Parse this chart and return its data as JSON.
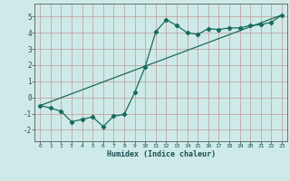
{
  "xlabel": "Humidex (Indice chaleur)",
  "background_color": "#ceeae8",
  "grid_color": "#c09898",
  "line_color": "#1a6b5a",
  "xlim": [
    -0.5,
    23.5
  ],
  "ylim": [
    -2.7,
    5.8
  ],
  "xticks": [
    0,
    1,
    2,
    3,
    4,
    5,
    6,
    7,
    8,
    9,
    10,
    11,
    12,
    13,
    14,
    15,
    16,
    17,
    18,
    19,
    20,
    21,
    22,
    23
  ],
  "yticks": [
    -2,
    -1,
    0,
    1,
    2,
    3,
    4,
    5
  ],
  "curve1_x": [
    0,
    1,
    2,
    3,
    4,
    5,
    6,
    7,
    8,
    9,
    10,
    11,
    12,
    13,
    14,
    15,
    16,
    17,
    18,
    19,
    20,
    21,
    22,
    23
  ],
  "curve1_y": [
    -0.5,
    -0.65,
    -0.85,
    -1.5,
    -1.35,
    -1.2,
    -1.8,
    -1.15,
    -1.05,
    0.3,
    1.9,
    4.05,
    4.8,
    4.45,
    4.0,
    3.9,
    4.25,
    4.2,
    4.3,
    4.3,
    4.45,
    4.5,
    4.65,
    5.1
  ],
  "curve2_x": [
    0,
    23
  ],
  "curve2_y": [
    -0.5,
    5.1
  ],
  "marker_style": "D",
  "marker_size": 2.2,
  "line_width": 0.9
}
